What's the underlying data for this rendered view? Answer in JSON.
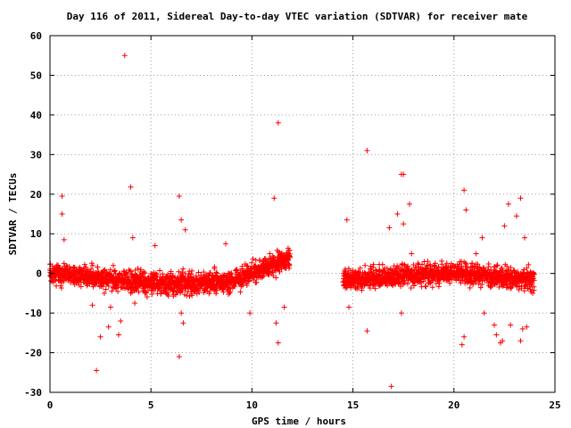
{
  "chart_data": {
    "type": "scatter",
    "title": "Day 116 of 2011, Sidereal Day-to-day VTEC variation (SDTVAR) for receiver mate",
    "xlabel": "GPS time / hours",
    "ylabel": "SDTVAR / TECUs",
    "xlim": [
      0,
      25
    ],
    "ylim": [
      -30,
      60
    ],
    "xticks": [
      0,
      5,
      10,
      15,
      20,
      25
    ],
    "yticks": [
      -30,
      -20,
      -10,
      0,
      10,
      20,
      30,
      40,
      50,
      60
    ],
    "grid": true,
    "marker": "+",
    "color": "#ff0000",
    "data_gap_hours": [
      11.9,
      14.5
    ],
    "outliers": [
      {
        "x": 0.6,
        "y": 19.5
      },
      {
        "x": 0.6,
        "y": 15
      },
      {
        "x": 0.7,
        "y": 8.5
      },
      {
        "x": 2.1,
        "y": -8
      },
      {
        "x": 2.3,
        "y": -24.5
      },
      {
        "x": 2.5,
        "y": -16
      },
      {
        "x": 2.9,
        "y": -13.5
      },
      {
        "x": 3.0,
        "y": -8.5
      },
      {
        "x": 3.4,
        "y": -15.5
      },
      {
        "x": 3.5,
        "y": -12
      },
      {
        "x": 3.7,
        "y": 55
      },
      {
        "x": 4.0,
        "y": 21.8
      },
      {
        "x": 4.1,
        "y": 9
      },
      {
        "x": 4.2,
        "y": -7.5
      },
      {
        "x": 5.2,
        "y": 7
      },
      {
        "x": 6.4,
        "y": 19.5
      },
      {
        "x": 6.5,
        "y": -10
      },
      {
        "x": 6.4,
        "y": -21
      },
      {
        "x": 6.5,
        "y": 13.5
      },
      {
        "x": 6.7,
        "y": 11
      },
      {
        "x": 6.6,
        "y": -12.5
      },
      {
        "x": 8.7,
        "y": 7.5
      },
      {
        "x": 9.9,
        "y": -10
      },
      {
        "x": 11.1,
        "y": 19
      },
      {
        "x": 11.2,
        "y": -12.5
      },
      {
        "x": 11.3,
        "y": 38
      },
      {
        "x": 11.3,
        "y": -17.5
      },
      {
        "x": 11.6,
        "y": -8.5
      },
      {
        "x": 14.7,
        "y": 13.5
      },
      {
        "x": 14.8,
        "y": -8.5
      },
      {
        "x": 15.7,
        "y": 31
      },
      {
        "x": 15.6,
        "y": 2
      },
      {
        "x": 15.7,
        "y": -14.5
      },
      {
        "x": 16.8,
        "y": 11.5
      },
      {
        "x": 16.9,
        "y": -28.5
      },
      {
        "x": 17.2,
        "y": 15
      },
      {
        "x": 17.4,
        "y": 25
      },
      {
        "x": 17.5,
        "y": 25
      },
      {
        "x": 17.5,
        "y": 12.5
      },
      {
        "x": 17.4,
        "y": -10
      },
      {
        "x": 17.8,
        "y": 17.5
      },
      {
        "x": 17.9,
        "y": 5
      },
      {
        "x": 20.4,
        "y": -18
      },
      {
        "x": 20.5,
        "y": 21
      },
      {
        "x": 20.5,
        "y": -16
      },
      {
        "x": 20.6,
        "y": 16
      },
      {
        "x": 21.1,
        "y": 5
      },
      {
        "x": 21.4,
        "y": 9
      },
      {
        "x": 21.5,
        "y": -10
      },
      {
        "x": 22.0,
        "y": -13
      },
      {
        "x": 22.1,
        "y": -15.5
      },
      {
        "x": 22.3,
        "y": -17.5
      },
      {
        "x": 22.4,
        "y": -17
      },
      {
        "x": 22.5,
        "y": 12
      },
      {
        "x": 22.7,
        "y": 17.5
      },
      {
        "x": 22.8,
        "y": -13
      },
      {
        "x": 23.1,
        "y": 14.5
      },
      {
        "x": 23.3,
        "y": 19
      },
      {
        "x": 23.3,
        "y": -17
      },
      {
        "x": 23.5,
        "y": 9
      },
      {
        "x": 23.6,
        "y": -13.5
      },
      {
        "x": 23.4,
        "y": -14
      }
    ]
  }
}
